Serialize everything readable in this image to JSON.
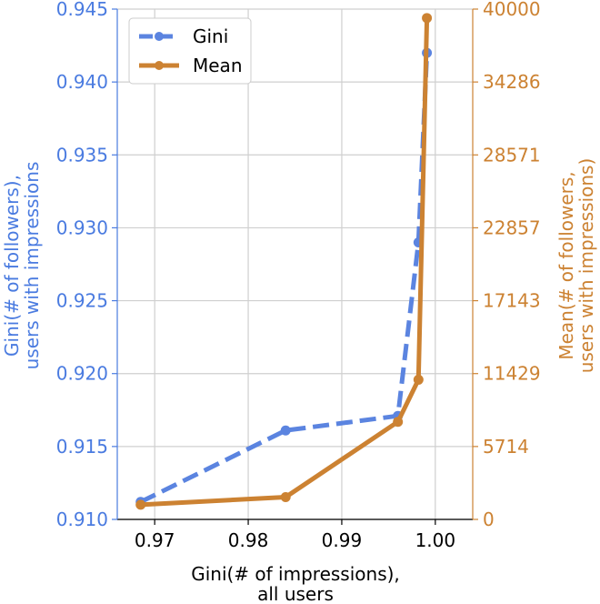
{
  "chart_data": {
    "type": "line",
    "xlabel": [
      "Gini(# of impressions),",
      "all users"
    ],
    "ylabel_left": [
      "Gini(# of followers),",
      "users with impressions"
    ],
    "ylabel_right": [
      "Mean(# of followers,",
      "users with impressions)"
    ],
    "xlim": [
      0.966,
      1.004
    ],
    "ylim_left": [
      0.91,
      0.945
    ],
    "ylim_right": [
      0,
      40000
    ],
    "x_ticks": [
      0.97,
      0.98,
      0.99,
      1.0
    ],
    "x_tick_labels": [
      "0.97",
      "0.98",
      "0.99",
      "1.00"
    ],
    "y_left_ticks": [
      0.91,
      0.915,
      0.92,
      0.925,
      0.93,
      0.935,
      0.94,
      0.945
    ],
    "y_left_tick_labels": [
      "0.910",
      "0.915",
      "0.920",
      "0.925",
      "0.930",
      "0.935",
      "0.940",
      "0.945"
    ],
    "y_right_ticks": [
      0,
      5714,
      11429,
      17143,
      22857,
      28571,
      34286,
      40000
    ],
    "y_right_tick_labels": [
      "0",
      "5714",
      "11429",
      "17143",
      "22857",
      "28571",
      "34286",
      "40000"
    ],
    "grid": true,
    "legend_position": "top-left",
    "series": [
      {
        "name": "Gini",
        "axis": "left",
        "color": "#5b84e0",
        "linestyle": "dashed",
        "x": [
          0.9685,
          0.984,
          0.996,
          0.9982,
          0.9991
        ],
        "y": [
          0.9112,
          0.9161,
          0.9171,
          0.929,
          0.942
        ]
      },
      {
        "name": "Mean",
        "axis": "right",
        "color": "#cc8232",
        "linestyle": "solid",
        "x": [
          0.9685,
          0.984,
          0.996,
          0.9982,
          0.9991
        ],
        "y": [
          1150,
          1750,
          7650,
          10950,
          39300
        ]
      }
    ]
  }
}
